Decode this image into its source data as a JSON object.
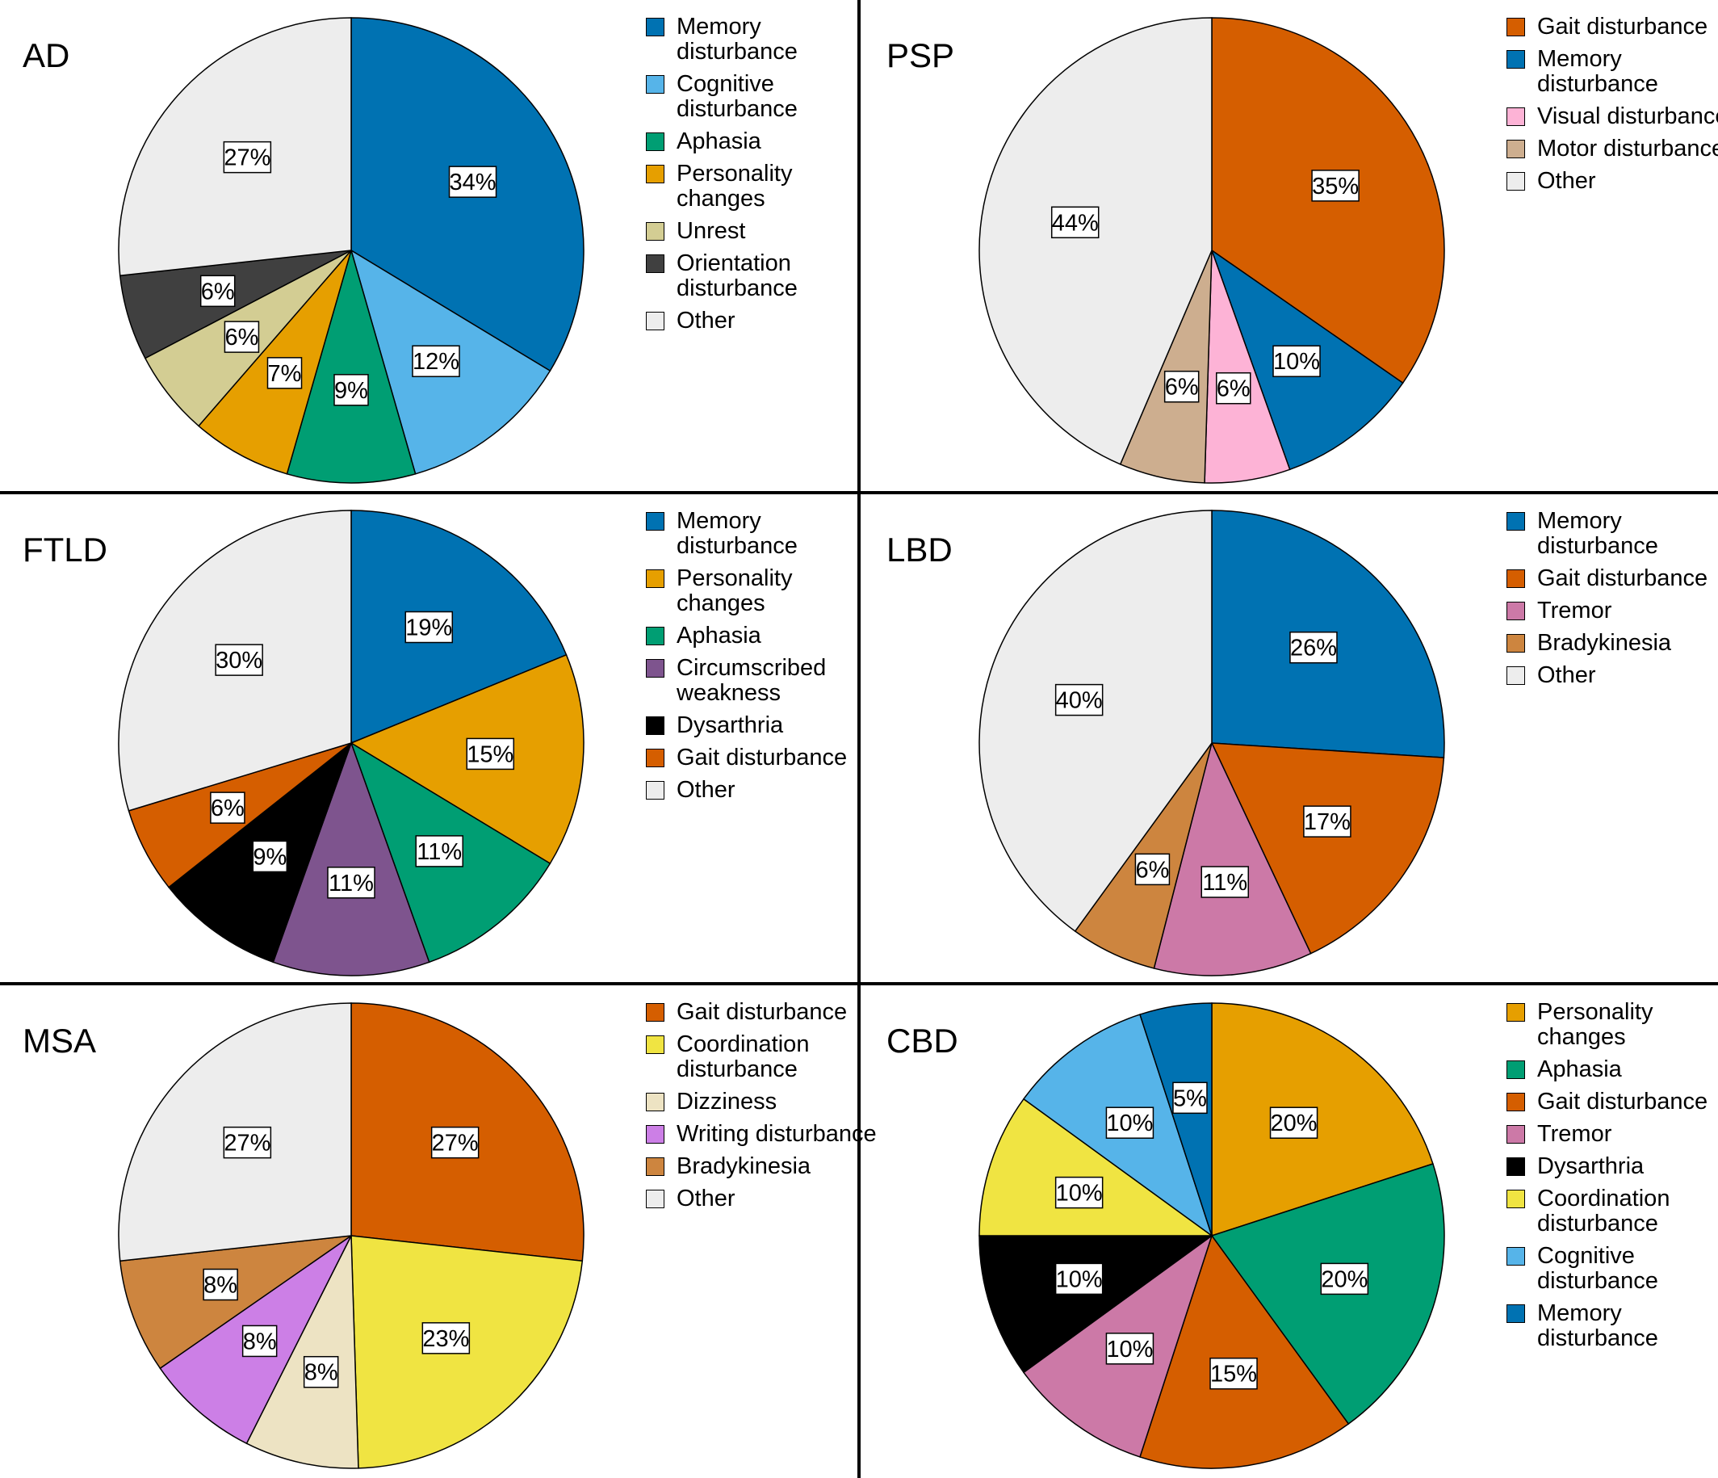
{
  "chart_data": [
    {
      "type": "pie",
      "title": "AD",
      "slices": [
        {
          "label": "Memory disturbance",
          "value": 34,
          "color": "#0072B2"
        },
        {
          "label": "Cognitive disturbance",
          "value": 12,
          "color": "#56B4E9"
        },
        {
          "label": "Aphasia",
          "value": 9,
          "color": "#009E73"
        },
        {
          "label": "Personality changes",
          "value": 7,
          "color": "#E69F00"
        },
        {
          "label": "Unrest",
          "value": 6,
          "color": "#D3CD93"
        },
        {
          "label": "Orientation disturbance",
          "value": 6,
          "color": "#404040"
        },
        {
          "label": "Other",
          "value": 27,
          "color": "#EDEDED"
        }
      ],
      "legend": [
        "Memory disturbance",
        "Cognitive disturbance",
        "Aphasia",
        "Personality changes",
        "Unrest",
        "Orientation disturbance",
        "Other"
      ]
    },
    {
      "type": "pie",
      "title": "PSP",
      "slices": [
        {
          "label": "Gait disturbance",
          "value": 35,
          "color": "#D55E00"
        },
        {
          "label": "Memory disturbance",
          "value": 10,
          "color": "#0072B2"
        },
        {
          "label": "Visual disturbance",
          "value": 6,
          "color": "#FDB3D6"
        },
        {
          "label": "Motor disturbance",
          "value": 6,
          "color": "#CDAE8F"
        },
        {
          "label": "Other",
          "value": 44,
          "color": "#EDEDED"
        }
      ],
      "legend": [
        "Gait disturbance",
        "Memory disturbance",
        "Visual disturbance",
        "Motor disturbance",
        "Other"
      ]
    },
    {
      "type": "pie",
      "title": "FTLD",
      "slices": [
        {
          "label": "Memory disturbance",
          "value": 19,
          "color": "#0072B2"
        },
        {
          "label": "Personality changes",
          "value": 15,
          "color": "#E69F00"
        },
        {
          "label": "Aphasia",
          "value": 11,
          "color": "#009E73"
        },
        {
          "label": "Circumscribed weakness",
          "value": 11,
          "color": "#7E548E"
        },
        {
          "label": "Dysarthria",
          "value": 9,
          "color": "#000000"
        },
        {
          "label": "Gait disturbance",
          "value": 6,
          "color": "#D55E00"
        },
        {
          "label": "Other",
          "value": 30,
          "color": "#EDEDED"
        }
      ],
      "legend": [
        "Memory disturbance",
        "Personality changes",
        "Aphasia",
        "Circumscribed weakness",
        "Dysarthria",
        "Gait disturbance",
        "Other"
      ]
    },
    {
      "type": "pie",
      "title": "LBD",
      "slices": [
        {
          "label": "Memory disturbance",
          "value": 26,
          "color": "#0072B2"
        },
        {
          "label": "Gait disturbance",
          "value": 17,
          "color": "#D55E00"
        },
        {
          "label": "Tremor",
          "value": 11,
          "color": "#CC79A7"
        },
        {
          "label": "Bradykinesia",
          "value": 6,
          "color": "#CD853F"
        },
        {
          "label": "Other",
          "value": 40,
          "color": "#EDEDED"
        }
      ],
      "legend": [
        "Memory disturbance",
        "Gait disturbance",
        "Tremor",
        "Bradykinesia",
        "Other"
      ]
    },
    {
      "type": "pie",
      "title": "MSA",
      "slices": [
        {
          "label": "Gait disturbance",
          "value": 27,
          "color": "#D55E00"
        },
        {
          "label": "Coordination disturbance",
          "value": 23,
          "color": "#F0E442"
        },
        {
          "label": "Dizziness",
          "value": 8,
          "color": "#EDE3C3"
        },
        {
          "label": "Writing disturbance",
          "value": 8,
          "color": "#CC7FE6"
        },
        {
          "label": "Bradykinesia",
          "value": 8,
          "color": "#CD853F"
        },
        {
          "label": "Other",
          "value": 27,
          "color": "#EDEDED"
        }
      ],
      "legend": [
        "Gait disturbance",
        "Coordination disturbance",
        "Dizziness",
        "Writing disturbance",
        "Bradykinesia",
        "Other"
      ]
    },
    {
      "type": "pie",
      "title": "CBD",
      "slices": [
        {
          "label": "Personality changes",
          "value": 20,
          "color": "#E69F00"
        },
        {
          "label": "Aphasia",
          "value": 20,
          "color": "#009E73"
        },
        {
          "label": "Gait disturbance",
          "value": 15,
          "color": "#D55E00"
        },
        {
          "label": "Tremor",
          "value": 10,
          "color": "#CC79A7"
        },
        {
          "label": "Dysarthria",
          "value": 10,
          "color": "#000000"
        },
        {
          "label": "Coordination disturbance",
          "value": 10,
          "color": "#F0E442"
        },
        {
          "label": "Cognitive disturbance",
          "value": 10,
          "color": "#56B4E9"
        },
        {
          "label": "Memory disturbance",
          "value": 5,
          "color": "#0072B2"
        }
      ],
      "legend": [
        "Personality changes",
        "Aphasia",
        "Gait disturbance",
        "Tremor",
        "Dysarthria",
        "Coordination disturbance",
        "Cognitive disturbance",
        "Memory disturbance"
      ]
    }
  ]
}
